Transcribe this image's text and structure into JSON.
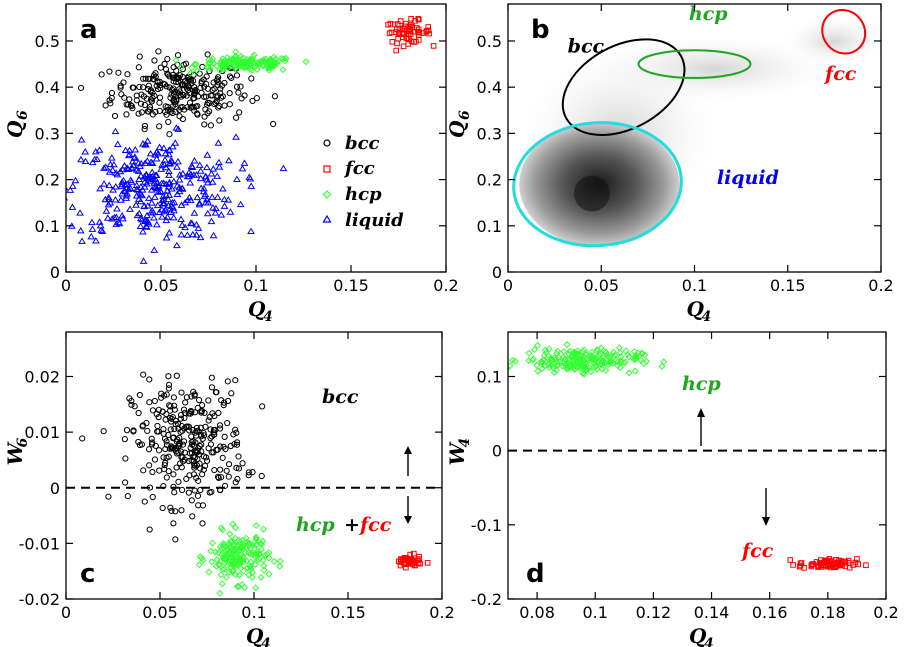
{
  "colors": {
    "bcc": "#000000",
    "fcc": "#ff0000",
    "hcp": "#1fa51f",
    "hcp_points": "#33ff33",
    "liquid": "#0000ff",
    "liquid_contour": "#22dddd"
  },
  "chart_data": [
    {
      "panel": "a",
      "type": "scatter",
      "xlabel": "Q",
      "xlabel_sub": "4",
      "ylabel": "Q",
      "ylabel_sub": "6",
      "xlim": [
        0,
        0.2
      ],
      "ylim": [
        0,
        0.58
      ],
      "xticks": [
        "0",
        "0.05",
        "0.1",
        "0.15",
        "0.2"
      ],
      "xtick_values": [
        0,
        0.05,
        0.1,
        0.15,
        0.2
      ],
      "yticks": [
        "0",
        "0.1",
        "0.2",
        "0.3",
        "0.4",
        "0.5"
      ],
      "ytick_values": [
        0,
        0.1,
        0.2,
        0.3,
        0.4,
        0.5
      ],
      "legend_position": "center-right",
      "series": [
        {
          "name": "bcc",
          "marker": "circle",
          "color": "#000000",
          "center": [
            0.06,
            0.39
          ],
          "spread": [
            0.018,
            0.035
          ],
          "count": 260
        },
        {
          "name": "fcc",
          "marker": "square",
          "color": "#ff0000",
          "center": [
            0.18,
            0.52
          ],
          "spread": [
            0.006,
            0.012
          ],
          "count": 60
        },
        {
          "name": "hcp",
          "marker": "diamond",
          "color": "#33ff33",
          "center": [
            0.095,
            0.45
          ],
          "spread": [
            0.013,
            0.008
          ],
          "count": 150
        },
        {
          "name": "liquid",
          "marker": "triangle",
          "color": "#0000ff",
          "center": [
            0.045,
            0.18
          ],
          "spread": [
            0.022,
            0.055
          ],
          "count": 340
        }
      ]
    },
    {
      "panel": "b",
      "type": "heatmap",
      "xlabel": "Q",
      "xlabel_sub": "4",
      "ylabel": "Q",
      "ylabel_sub": "6",
      "xlim": [
        0,
        0.2
      ],
      "ylim": [
        0,
        0.58
      ],
      "xticks": [
        "0",
        "0.05",
        "0.1",
        "0.15",
        "0.2"
      ],
      "xtick_values": [
        0,
        0.05,
        0.1,
        0.15,
        0.2
      ],
      "yticks": [
        "0",
        "0.1",
        "0.2",
        "0.3",
        "0.4",
        "0.5"
      ],
      "ytick_values": [
        0,
        0.1,
        0.2,
        0.3,
        0.4,
        0.5
      ],
      "density_peak": [
        0.045,
        0.17
      ],
      "regions": [
        {
          "name": "bcc",
          "center": [
            0.062,
            0.4
          ],
          "radii": [
            0.035,
            0.09
          ],
          "color": "#000000",
          "label_at": [
            0.032,
            0.475
          ]
        },
        {
          "name": "hcp",
          "center": [
            0.1,
            0.45
          ],
          "radii": [
            0.03,
            0.03
          ],
          "color": "#1fa51f",
          "label_at": [
            0.097,
            0.545
          ]
        },
        {
          "name": "fcc",
          "center": [
            0.18,
            0.52
          ],
          "radii": [
            0.012,
            0.045
          ],
          "color": "#ff0000",
          "label_at": [
            0.17,
            0.415
          ]
        },
        {
          "name": "liquid",
          "center": [
            0.048,
            0.19
          ],
          "radii": [
            0.045,
            0.14
          ],
          "color": "#22dddd",
          "label_color": "#0000ff",
          "label_at": [
            0.112,
            0.19
          ]
        }
      ]
    },
    {
      "panel": "c",
      "type": "scatter",
      "xlabel": "Q",
      "xlabel_sub": "4",
      "ylabel": "W",
      "ylabel_sub": "6",
      "xlim": [
        0,
        0.2
      ],
      "ylim": [
        -0.02,
        0.028
      ],
      "xticks": [
        "0",
        "0.05",
        "0.1",
        "0.15",
        "0.2"
      ],
      "xtick_values": [
        0,
        0.05,
        0.1,
        0.15,
        0.2
      ],
      "yticks": [
        "-0.02",
        "-0.01",
        "0",
        "0.01",
        "0.02"
      ],
      "ytick_values": [
        -0.02,
        -0.01,
        0,
        0.01,
        0.02
      ],
      "reference_line": 0,
      "series": [
        {
          "name": "bcc",
          "marker": "circle",
          "color": "#000000",
          "center": [
            0.065,
            0.008
          ],
          "spread": [
            0.015,
            0.0055
          ],
          "count": 300
        },
        {
          "name": "hcp",
          "marker": "diamond",
          "color": "#33ff33",
          "center": [
            0.092,
            -0.0125
          ],
          "spread": [
            0.008,
            0.0022
          ],
          "count": 180
        },
        {
          "name": "fcc",
          "marker": "square",
          "color": "#ff0000",
          "center": [
            0.182,
            -0.0133
          ],
          "spread": [
            0.0035,
            0.0005
          ],
          "count": 50
        }
      ],
      "annotations": {
        "bcc": "bcc",
        "hcp": "hcp",
        "plus": "+",
        "fcc": "fcc"
      }
    },
    {
      "panel": "d",
      "type": "scatter",
      "xlabel": "Q",
      "xlabel_sub": "4",
      "ylabel": "W",
      "ylabel_sub": "4",
      "xlim": [
        0.07,
        0.2
      ],
      "ylim": [
        -0.2,
        0.16
      ],
      "xticks": [
        "0.08",
        "0.1",
        "0.12",
        "0.14",
        "0.16",
        "0.18",
        "0.2"
      ],
      "xtick_values": [
        0.08,
        0.1,
        0.12,
        0.14,
        0.16,
        0.18,
        0.2
      ],
      "yticks": [
        "-0.2",
        "-0.1",
        "0",
        "0.1"
      ],
      "ytick_values": [
        -0.2,
        -0.1,
        0,
        0.1
      ],
      "reference_line": 0,
      "series": [
        {
          "name": "hcp",
          "marker": "diamond",
          "color": "#33ff33",
          "center": [
            0.095,
            0.122
          ],
          "spread": [
            0.01,
            0.008
          ],
          "count": 200
        },
        {
          "name": "fcc",
          "marker": "square",
          "color": "#ff0000",
          "center": [
            0.18,
            -0.153
          ],
          "spread": [
            0.005,
            0.0035
          ],
          "count": 70
        }
      ],
      "annotations": {
        "hcp": "hcp",
        "fcc": "fcc"
      }
    }
  ]
}
